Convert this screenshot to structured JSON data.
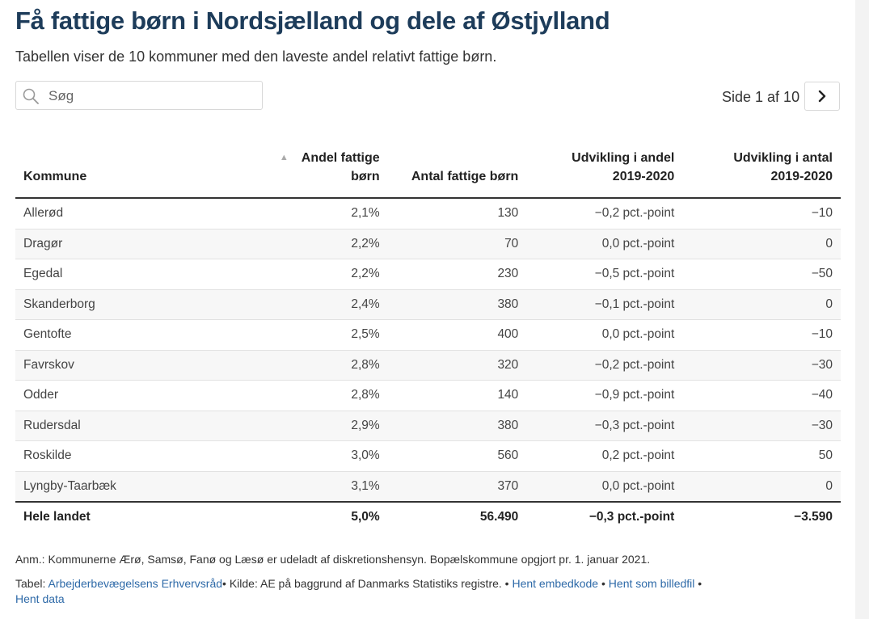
{
  "title": "Få fattige børn i Nordsjælland og dele af Østjylland",
  "subtitle": "Tabellen viser de 10 kommuner med den laveste andel relativt fattige børn.",
  "search": {
    "placeholder": "Søg"
  },
  "pager": {
    "label": "Side 1 af 10",
    "next_icon": "chevron-right-icon"
  },
  "table": {
    "headers": {
      "kommune": "Kommune",
      "andel": "Andel fattige børn",
      "antal": "Antal fattige børn",
      "udv_andel_1": "Udvikling i andel",
      "udv_andel_2": "2019-2020",
      "udv_antal_1": "Udvikling i antal",
      "udv_antal_2": "2019-2020"
    },
    "rows": [
      {
        "kommune": "Allerød",
        "andel": "2,1%",
        "antal": "130",
        "udv_andel": "−0,2 pct.-point",
        "udv_antal": "−10"
      },
      {
        "kommune": "Dragør",
        "andel": "2,2%",
        "antal": "70",
        "udv_andel": "0,0 pct.-point",
        "udv_antal": "0"
      },
      {
        "kommune": "Egedal",
        "andel": "2,2%",
        "antal": "230",
        "udv_andel": "−0,5 pct.-point",
        "udv_antal": "−50"
      },
      {
        "kommune": "Skanderborg",
        "andel": "2,4%",
        "antal": "380",
        "udv_andel": "−0,1 pct.-point",
        "udv_antal": "0"
      },
      {
        "kommune": "Gentofte",
        "andel": "2,5%",
        "antal": "400",
        "udv_andel": "0,0 pct.-point",
        "udv_antal": "−10"
      },
      {
        "kommune": "Favrskov",
        "andel": "2,8%",
        "antal": "320",
        "udv_andel": "−0,2 pct.-point",
        "udv_antal": "−30"
      },
      {
        "kommune": "Odder",
        "andel": "2,8%",
        "antal": "140",
        "udv_andel": "−0,9 pct.-point",
        "udv_antal": "−40"
      },
      {
        "kommune": "Rudersdal",
        "andel": "2,9%",
        "antal": "380",
        "udv_andel": "−0,3 pct.-point",
        "udv_antal": "−30"
      },
      {
        "kommune": "Roskilde",
        "andel": "3,0%",
        "antal": "560",
        "udv_andel": "0,2 pct.-point",
        "udv_antal": "50"
      },
      {
        "kommune": "Lyngby-Taarbæk",
        "andel": "3,1%",
        "antal": "370",
        "udv_andel": "0,0 pct.-point",
        "udv_antal": "0"
      }
    ],
    "total": {
      "kommune": "Hele landet",
      "andel": "5,0%",
      "antal": "56.490",
      "udv_andel": "−0,3 pct.-point",
      "udv_antal": "−3.590"
    }
  },
  "note": "Anm.: Kommunerne Ærø, Samsø, Fanø og Læsø er udeladt af diskretionshensyn. Bopælskommune opgjort pr. 1. januar 2021.",
  "credits": {
    "tabel_label": "Tabel:",
    "tabel_link": "Arbejderbevægelsens Erhvervsråd",
    "kilde": "• Kilde: AE på baggrund af Danmarks Statistiks registre.",
    "sep1": " • ",
    "embed_link": "Hent embedkode",
    "sep2": " • ",
    "image_link": "Hent som billedfil",
    "sep3": " •",
    "data_link": "Hent data"
  },
  "colors": {
    "title": "#1d3c5a",
    "link": "#2e6aa8"
  }
}
